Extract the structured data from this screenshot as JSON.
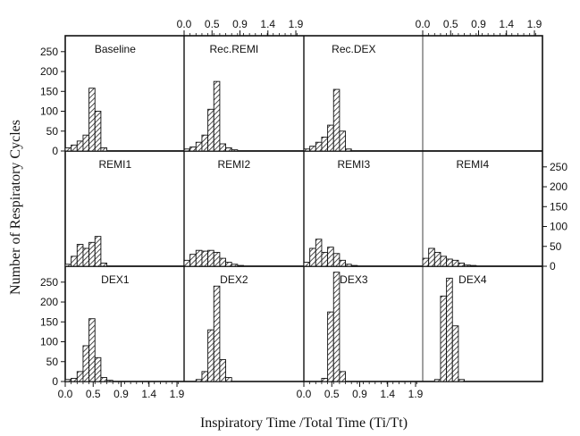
{
  "chart_data": {
    "type": "bar",
    "title": "",
    "xlabel": "Inspiratory Time /Total Time (Ti/Tt)",
    "ylabel": "Number of Respiratory Cycles",
    "xlim": [
      0.0,
      2.0
    ],
    "ylim": [
      0,
      290
    ],
    "x_ticks": [
      "0.0",
      "0.5",
      "0.9",
      "1.4",
      "1.9"
    ],
    "x_tick_values": [
      0.0,
      0.47,
      0.94,
      1.41,
      1.88
    ],
    "y_ticks": [
      "0",
      "50",
      "100",
      "150",
      "200",
      "250"
    ],
    "y_tick_values": [
      0,
      50,
      100,
      150,
      200,
      250
    ],
    "bin_width": 0.1,
    "grid": false,
    "hatch_color": "#222222",
    "panels": [
      {
        "label": "Baseline",
        "row": 0,
        "col": 0,
        "bins": [
          0.05,
          0.15,
          0.25,
          0.35,
          0.45,
          0.55,
          0.65
        ],
        "values": [
          8,
          15,
          25,
          40,
          158,
          100,
          8
        ]
      },
      {
        "label": "Rec.REMI",
        "row": 0,
        "col": 1,
        "bins": [
          0.05,
          0.15,
          0.25,
          0.35,
          0.45,
          0.55,
          0.65,
          0.75,
          0.85
        ],
        "values": [
          5,
          10,
          22,
          40,
          105,
          175,
          18,
          8,
          3
        ]
      },
      {
        "label": "Rec.DEX",
        "row": 0,
        "col": 2,
        "bins": [
          0.05,
          0.15,
          0.25,
          0.35,
          0.45,
          0.55,
          0.65,
          0.75
        ],
        "values": [
          5,
          12,
          22,
          35,
          65,
          155,
          50,
          5
        ]
      },
      {
        "label": "",
        "row": 0,
        "col": 3,
        "bins": [],
        "values": []
      },
      {
        "label": "REMI1",
        "row": 1,
        "col": 0,
        "bins": [
          0.05,
          0.15,
          0.25,
          0.35,
          0.45,
          0.55,
          0.65
        ],
        "values": [
          5,
          25,
          55,
          45,
          60,
          75,
          8
        ]
      },
      {
        "label": "REMI2",
        "row": 1,
        "col": 1,
        "bins": [
          0.05,
          0.15,
          0.25,
          0.35,
          0.45,
          0.55,
          0.65,
          0.75,
          0.85,
          0.95
        ],
        "values": [
          15,
          30,
          40,
          38,
          40,
          35,
          20,
          10,
          5,
          2
        ]
      },
      {
        "label": "REMI3",
        "row": 1,
        "col": 2,
        "bins": [
          0.05,
          0.15,
          0.25,
          0.35,
          0.45,
          0.55,
          0.65,
          0.75,
          0.85
        ],
        "values": [
          10,
          45,
          68,
          35,
          48,
          32,
          15,
          5,
          2
        ]
      },
      {
        "label": "REMI4",
        "row": 1,
        "col": 3,
        "bins": [
          0.05,
          0.15,
          0.25,
          0.35,
          0.45,
          0.55,
          0.65,
          0.75,
          0.85
        ],
        "values": [
          20,
          45,
          35,
          25,
          18,
          15,
          8,
          3,
          2
        ]
      },
      {
        "label": "DEX1",
        "row": 2,
        "col": 0,
        "bins": [
          0.05,
          0.15,
          0.25,
          0.35,
          0.45,
          0.55,
          0.65,
          0.75
        ],
        "values": [
          5,
          8,
          25,
          90,
          158,
          60,
          10,
          3
        ]
      },
      {
        "label": "DEX2",
        "row": 2,
        "col": 1,
        "bins": [
          0.25,
          0.35,
          0.45,
          0.55,
          0.65,
          0.75
        ],
        "values": [
          5,
          25,
          130,
          240,
          55,
          10
        ]
      },
      {
        "label": "DEX3",
        "row": 2,
        "col": 2,
        "bins": [
          0.35,
          0.45,
          0.55,
          0.65
        ],
        "values": [
          8,
          175,
          275,
          25
        ]
      },
      {
        "label": "DEX4",
        "row": 2,
        "col": 3,
        "bins": [
          0.25,
          0.35,
          0.45,
          0.55,
          0.65
        ],
        "values": [
          5,
          215,
          260,
          140,
          5
        ]
      }
    ]
  }
}
